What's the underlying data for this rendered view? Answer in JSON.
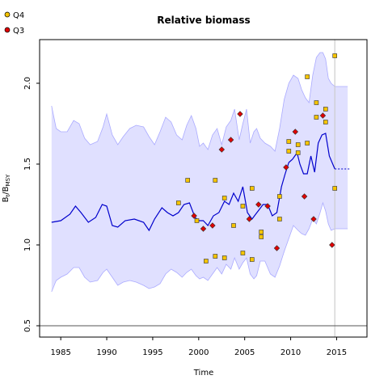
{
  "chart_data": {
    "type": "line",
    "title": "Relative biomass",
    "xlabel": "Time",
    "ylabel": "B_t/B_MSY",
    "xlim": [
      1982.7,
      2018.3
    ],
    "ylim": [
      0.43,
      2.27
    ],
    "xticks": [
      1985,
      1990,
      1995,
      2000,
      2005,
      2010,
      2015
    ],
    "yticks": [
      0.5,
      1.0,
      1.5,
      2.0
    ],
    "xtick_labels": [
      "1985",
      "1990",
      "1995",
      "2000",
      "2005",
      "2010",
      "2015"
    ],
    "ytick_labels": [
      "0.5",
      "1.0",
      "1.5",
      "2.0"
    ],
    "reference_line_y": 0.5,
    "last_data_year": 2014.8,
    "colors": {
      "band": "#e0e0ff",
      "band_edge": "#aaaaff",
      "median": "#0000cc",
      "q4": "#f5c400",
      "q3": "#e00000"
    },
    "legend": [
      {
        "label": "Q4",
        "color": "#f5c400",
        "marker": "circle"
      },
      {
        "label": "Q3",
        "color": "#e00000",
        "marker": "circle"
      }
    ],
    "series": [
      {
        "name": "median",
        "x": [
          1984,
          1985,
          1986,
          1986.6,
          1987.2,
          1988,
          1988.8,
          1989.5,
          1990,
          1990.6,
          1991.2,
          1992,
          1993,
          1994,
          1994.6,
          1995.2,
          1996,
          1996.6,
          1997.2,
          1997.8,
          1998.4,
          1999,
          1999.6,
          2000,
          2000.5,
          2001,
          2001.6,
          2002.2,
          2002.8,
          2003.3,
          2003.8,
          2004.3,
          2004.8,
          2005.3,
          2005.8,
          2006.2,
          2006.6,
          2007,
          2007.5,
          2008,
          2008.5,
          2009,
          2009.4,
          2009.8,
          2010.2,
          2010.7,
          2011,
          2011.4,
          2011.8,
          2012.2,
          2012.6,
          2013,
          2013.4,
          2013.8,
          2014.2,
          2014.8
        ],
        "values": [
          1.14,
          1.15,
          1.19,
          1.24,
          1.2,
          1.14,
          1.17,
          1.25,
          1.24,
          1.12,
          1.11,
          1.15,
          1.16,
          1.14,
          1.09,
          1.16,
          1.23,
          1.2,
          1.18,
          1.2,
          1.25,
          1.26,
          1.17,
          1.15,
          1.15,
          1.12,
          1.18,
          1.2,
          1.27,
          1.25,
          1.32,
          1.27,
          1.36,
          1.2,
          1.16,
          1.19,
          1.22,
          1.25,
          1.25,
          1.18,
          1.2,
          1.36,
          1.44,
          1.51,
          1.53,
          1.57,
          1.5,
          1.44,
          1.44,
          1.55,
          1.45,
          1.63,
          1.68,
          1.69,
          1.55,
          1.47
        ]
      },
      {
        "name": "median projection",
        "x": [
          2014.8,
          2015.5,
          2016,
          2016.5
        ],
        "values": [
          1.47,
          1.47,
          1.47,
          1.47
        ]
      },
      {
        "name": "upper band",
        "x": [
          1984,
          1984.5,
          1985,
          1985.7,
          1986.4,
          1987,
          1987.6,
          1988.2,
          1989,
          1989.6,
          1990,
          1990.6,
          1991.2,
          1991.8,
          1992.5,
          1993.2,
          1994,
          1994.6,
          1995.2,
          1995.8,
          1996.4,
          1997,
          1997.6,
          1998.2,
          1998.7,
          1999.2,
          1999.7,
          2000.1,
          2000.5,
          2001,
          2001.5,
          2002,
          2002.5,
          2003,
          2003.5,
          2003.9,
          2004.4,
          2004.8,
          2005.2,
          2005.6,
          2006,
          2006.3,
          2006.7,
          2007.2,
          2007.8,
          2008.3,
          2008.8,
          2009.3,
          2009.8,
          2010.3,
          2010.8,
          2011.2,
          2011.6,
          2012,
          2012.4,
          2012.8,
          2013.2,
          2013.5,
          2013.8,
          2014.1,
          2014.4,
          2014.8,
          2015.5,
          2016.2
        ],
        "values": [
          1.86,
          1.72,
          1.7,
          1.7,
          1.77,
          1.75,
          1.66,
          1.62,
          1.64,
          1.73,
          1.81,
          1.68,
          1.62,
          1.67,
          1.72,
          1.74,
          1.73,
          1.67,
          1.62,
          1.7,
          1.79,
          1.76,
          1.68,
          1.65,
          1.74,
          1.8,
          1.72,
          1.61,
          1.63,
          1.59,
          1.68,
          1.72,
          1.62,
          1.73,
          1.77,
          1.84,
          1.65,
          1.75,
          1.84,
          1.63,
          1.7,
          1.72,
          1.66,
          1.63,
          1.61,
          1.58,
          1.72,
          1.9,
          2.0,
          2.05,
          2.03,
          1.96,
          1.91,
          1.88,
          2.05,
          2.16,
          2.19,
          2.19,
          2.15,
          2.03,
          2.0,
          1.98,
          1.98,
          1.98
        ]
      },
      {
        "name": "lower band",
        "x": [
          1984,
          1984.5,
          1985,
          1985.7,
          1986.4,
          1987,
          1987.6,
          1988.2,
          1989,
          1989.6,
          1990,
          1990.6,
          1991.2,
          1991.8,
          1992.5,
          1993.2,
          1994,
          1994.6,
          1995.2,
          1995.8,
          1996.4,
          1997,
          1997.6,
          1998.2,
          1998.7,
          1999.2,
          1999.7,
          2000.1,
          2000.5,
          2001,
          2001.5,
          2002,
          2002.5,
          2003,
          2003.5,
          2003.9,
          2004.4,
          2004.8,
          2005.2,
          2005.6,
          2006,
          2006.3,
          2006.7,
          2007.2,
          2007.8,
          2008.3,
          2008.8,
          2009.3,
          2009.8,
          2010.3,
          2010.8,
          2011.2,
          2011.6,
          2012,
          2012.4,
          2012.8,
          2013.2,
          2013.5,
          2013.8,
          2014.1,
          2014.4,
          2014.8,
          2015.5,
          2016.2
        ],
        "values": [
          0.71,
          0.78,
          0.8,
          0.82,
          0.86,
          0.86,
          0.8,
          0.77,
          0.78,
          0.83,
          0.85,
          0.8,
          0.75,
          0.77,
          0.78,
          0.77,
          0.75,
          0.73,
          0.74,
          0.76,
          0.82,
          0.85,
          0.83,
          0.8,
          0.83,
          0.85,
          0.81,
          0.79,
          0.8,
          0.78,
          0.82,
          0.86,
          0.82,
          0.88,
          0.85,
          0.92,
          0.85,
          0.89,
          0.92,
          0.82,
          0.79,
          0.81,
          0.9,
          0.9,
          0.82,
          0.8,
          0.87,
          0.96,
          1.04,
          1.12,
          1.09,
          1.07,
          1.06,
          1.1,
          1.16,
          1.13,
          1.2,
          1.26,
          1.21,
          1.13,
          1.09,
          1.1,
          1.1,
          1.1
        ]
      }
    ],
    "points": [
      {
        "name": "Q4",
        "x": [
          1997.8,
          1998.8,
          1999.8,
          2000.8,
          2001.8,
          2001.8,
          2002.8,
          2002.8,
          2003.8,
          2004.8,
          2004.8,
          2005.8,
          2005.8,
          2006.8,
          2006.8,
          2008.8,
          2008.8,
          2009.8,
          2009.8,
          2010.8,
          2010.8,
          2011.8,
          2011.8,
          2012.8,
          2012.8,
          2013.8,
          2013.8,
          2014.8,
          2014.8
        ],
        "y": [
          1.26,
          1.4,
          1.15,
          0.9,
          1.4,
          0.93,
          1.29,
          0.92,
          1.12,
          1.24,
          0.95,
          1.35,
          0.91,
          1.08,
          1.05,
          1.3,
          1.16,
          1.58,
          1.64,
          1.62,
          1.57,
          2.04,
          1.63,
          1.88,
          1.79,
          1.84,
          1.76,
          2.17,
          1.35
        ]
      },
      {
        "name": "Q3",
        "x": [
          1999.5,
          2000.5,
          2001.5,
          2002.5,
          2003.5,
          2004.5,
          2005.5,
          2006.5,
          2007.5,
          2008.5,
          2009.5,
          2010.5,
          2011.5,
          2012.5,
          2013.5,
          2014.5
        ],
        "y": [
          1.18,
          1.1,
          1.12,
          1.59,
          1.65,
          1.81,
          1.16,
          1.25,
          1.24,
          0.98,
          1.48,
          1.7,
          1.3,
          1.16,
          1.8,
          1.0
        ]
      }
    ]
  }
}
